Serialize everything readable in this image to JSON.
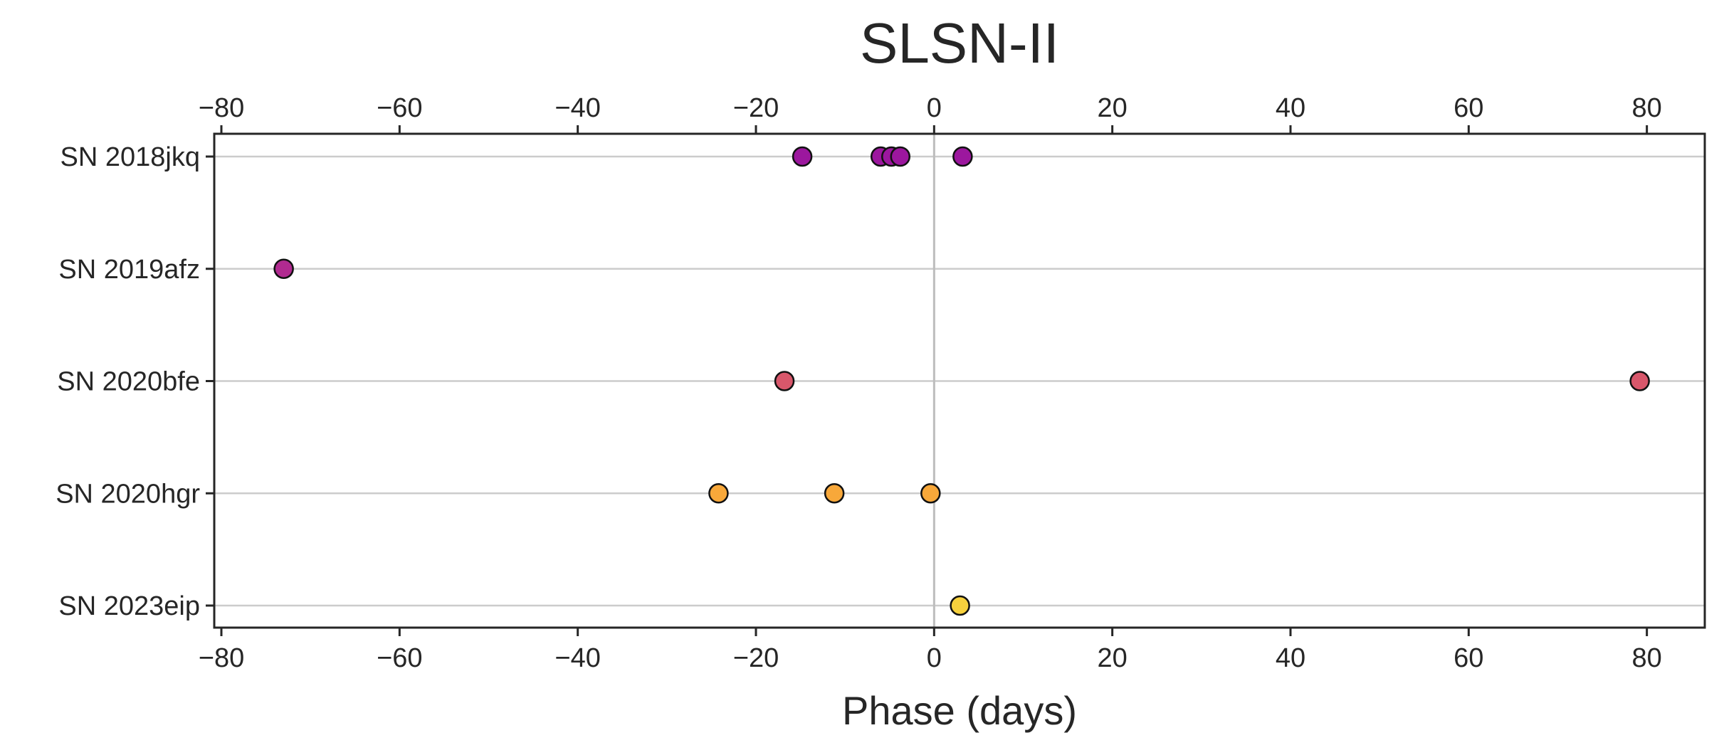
{
  "chart_data": {
    "type": "scatter",
    "title": "SLSN-II",
    "xlabel": "Phase (days)",
    "ylabel": "",
    "xlim": [
      -80.8,
      86.5
    ],
    "xticks": [
      -80,
      -60,
      -40,
      -20,
      0,
      20,
      40,
      60,
      80
    ],
    "xtick_labels": [
      "−80",
      "−60",
      "−40",
      "−20",
      "0",
      "20",
      "40",
      "60",
      "80"
    ],
    "top_axis_ticks": true,
    "grid": "horizontal",
    "reference_line_x": 0,
    "categories": [
      "SN 2018jkq",
      "SN 2019afz",
      "SN 2020bfe",
      "SN 2020hgr",
      "SN 2023eip"
    ],
    "series": [
      {
        "category": "SN 2018jkq",
        "color": "#9c179e",
        "x": [
          -14.8,
          -6.0,
          -4.8,
          -3.8,
          3.2
        ]
      },
      {
        "category": "SN 2019afz",
        "color": "#b12a90",
        "x": [
          -73.0
        ]
      },
      {
        "category": "SN 2020bfe",
        "color": "#d8576b",
        "x": [
          -16.8,
          79.2
        ]
      },
      {
        "category": "SN 2020hgr",
        "color": "#f8a83a",
        "x": [
          -24.2,
          -11.2,
          -0.4
        ]
      },
      {
        "category": "SN 2023eip",
        "color": "#f7d13d",
        "x": [
          2.9
        ]
      }
    ]
  }
}
